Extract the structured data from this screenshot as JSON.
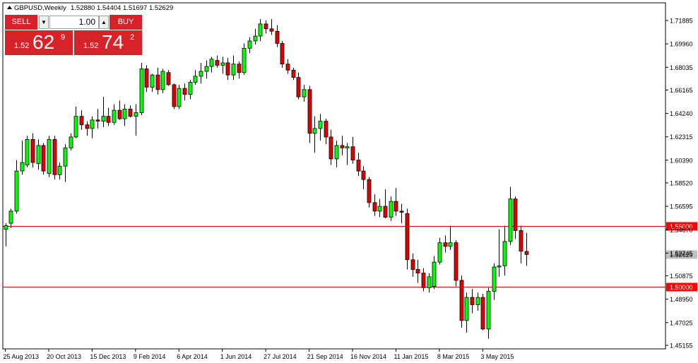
{
  "header": {
    "symbol": "GBPUSD,Weekly",
    "values": "1.52880 1.54404 1.51697 1.52629",
    "icon": "dropdown-triangle-icon"
  },
  "trade_panel": {
    "sell_label": "SELL",
    "buy_label": "BUY",
    "lot": "1.00",
    "sell_prefix": "1.52",
    "sell_big": "62",
    "sell_sup": "9",
    "buy_prefix": "1.52",
    "buy_big": "74",
    "buy_sup": "2",
    "spin_down_icon": "chevron-down-icon",
    "spin_up_icon": "chevron-up-icon"
  },
  "colors": {
    "bull": "#00ff00",
    "bear": "#e00000",
    "line": "#e00000",
    "axis": "#000000",
    "badge": "#ff0000",
    "current": "#c0c0c0"
  },
  "chart_data": {
    "type": "candlestick",
    "title": "GBPUSD,Weekly",
    "y_ticks": [
      "1.71885",
      "1.69960",
      "1.68035",
      "1.66165",
      "1.64240",
      "1.62315",
      "1.60390",
      "1.58520",
      "1.56595",
      "1.54670",
      "1.52745",
      "1.50875",
      "1.48950",
      "1.47025",
      "1.45155"
    ],
    "ylim": [
      1.4489,
      1.7299
    ],
    "x_ticks": [
      "25 Aug 2013",
      "20 Oct 2013",
      "15 Dec 2013",
      "9 Feb 2014",
      "6 Apr 2014",
      "1 Jun 2014",
      "27 Jul 2014",
      "21 Sep 2014",
      "16 Nov 2014",
      "11 Jan 2015",
      "8 Mar 2015",
      "3 May 2015"
    ],
    "levels": [
      {
        "value": 1.55,
        "label": "1.55000"
      },
      {
        "value": 1.5,
        "label": "1.50000"
      }
    ],
    "current": {
      "value": 1.52629,
      "label": "1.52629"
    },
    "candles": [
      {
        "o": 1.547,
        "h": 1.552,
        "l": 1.533,
        "c": 1.55
      },
      {
        "o": 1.552,
        "h": 1.564,
        "l": 1.548,
        "c": 1.562
      },
      {
        "o": 1.562,
        "h": 1.604,
        "l": 1.56,
        "c": 1.595
      },
      {
        "o": 1.595,
        "h": 1.62,
        "l": 1.592,
        "c": 1.602
      },
      {
        "o": 1.6,
        "h": 1.624,
        "l": 1.598,
        "c": 1.621
      },
      {
        "o": 1.621,
        "h": 1.626,
        "l": 1.598,
        "c": 1.602
      },
      {
        "o": 1.601,
        "h": 1.621,
        "l": 1.596,
        "c": 1.616
      },
      {
        "o": 1.616,
        "h": 1.618,
        "l": 1.592,
        "c": 1.595
      },
      {
        "o": 1.593,
        "h": 1.624,
        "l": 1.59,
        "c": 1.621
      },
      {
        "o": 1.621,
        "h": 1.624,
        "l": 1.588,
        "c": 1.592
      },
      {
        "o": 1.592,
        "h": 1.602,
        "l": 1.588,
        "c": 1.599
      },
      {
        "o": 1.599,
        "h": 1.617,
        "l": 1.586,
        "c": 1.614
      },
      {
        "o": 1.614,
        "h": 1.626,
        "l": 1.612,
        "c": 1.623
      },
      {
        "o": 1.623,
        "h": 1.648,
        "l": 1.622,
        "c": 1.64
      },
      {
        "o": 1.64,
        "h": 1.645,
        "l": 1.629,
        "c": 1.633
      },
      {
        "o": 1.633,
        "h": 1.636,
        "l": 1.624,
        "c": 1.63
      },
      {
        "o": 1.63,
        "h": 1.64,
        "l": 1.622,
        "c": 1.637
      },
      {
        "o": 1.637,
        "h": 1.646,
        "l": 1.63,
        "c": 1.636
      },
      {
        "o": 1.636,
        "h": 1.656,
        "l": 1.631,
        "c": 1.64
      },
      {
        "o": 1.64,
        "h": 1.647,
        "l": 1.632,
        "c": 1.635
      },
      {
        "o": 1.635,
        "h": 1.65,
        "l": 1.633,
        "c": 1.645
      },
      {
        "o": 1.645,
        "h": 1.653,
        "l": 1.637,
        "c": 1.638
      },
      {
        "o": 1.638,
        "h": 1.65,
        "l": 1.632,
        "c": 1.646
      },
      {
        "o": 1.646,
        "h": 1.649,
        "l": 1.639,
        "c": 1.64
      },
      {
        "o": 1.64,
        "h": 1.65,
        "l": 1.624,
        "c": 1.643
      },
      {
        "o": 1.643,
        "h": 1.684,
        "l": 1.641,
        "c": 1.679
      },
      {
        "o": 1.679,
        "h": 1.682,
        "l": 1.66,
        "c": 1.664
      },
      {
        "o": 1.664,
        "h": 1.675,
        "l": 1.66,
        "c": 1.674
      },
      {
        "o": 1.674,
        "h": 1.68,
        "l": 1.658,
        "c": 1.662
      },
      {
        "o": 1.662,
        "h": 1.679,
        "l": 1.659,
        "c": 1.677
      },
      {
        "o": 1.676,
        "h": 1.678,
        "l": 1.665,
        "c": 1.666
      },
      {
        "o": 1.666,
        "h": 1.667,
        "l": 1.646,
        "c": 1.648
      },
      {
        "o": 1.648,
        "h": 1.666,
        "l": 1.646,
        "c": 1.663
      },
      {
        "o": 1.663,
        "h": 1.667,
        "l": 1.653,
        "c": 1.658
      },
      {
        "o": 1.658,
        "h": 1.67,
        "l": 1.654,
        "c": 1.668
      },
      {
        "o": 1.668,
        "h": 1.678,
        "l": 1.666,
        "c": 1.673
      },
      {
        "o": 1.673,
        "h": 1.684,
        "l": 1.667,
        "c": 1.677
      },
      {
        "o": 1.677,
        "h": 1.686,
        "l": 1.671,
        "c": 1.681
      },
      {
        "o": 1.681,
        "h": 1.689,
        "l": 1.676,
        "c": 1.687
      },
      {
        "o": 1.686,
        "h": 1.69,
        "l": 1.68,
        "c": 1.682
      },
      {
        "o": 1.682,
        "h": 1.689,
        "l": 1.675,
        "c": 1.684
      },
      {
        "o": 1.684,
        "h": 1.688,
        "l": 1.67,
        "c": 1.674
      },
      {
        "o": 1.674,
        "h": 1.69,
        "l": 1.67,
        "c": 1.683
      },
      {
        "o": 1.683,
        "h": 1.685,
        "l": 1.671,
        "c": 1.676
      },
      {
        "o": 1.676,
        "h": 1.7,
        "l": 1.674,
        "c": 1.696
      },
      {
        "o": 1.696,
        "h": 1.705,
        "l": 1.692,
        "c": 1.702
      },
      {
        "o": 1.702,
        "h": 1.712,
        "l": 1.699,
        "c": 1.706
      },
      {
        "o": 1.706,
        "h": 1.72,
        "l": 1.702,
        "c": 1.716
      },
      {
        "o": 1.716,
        "h": 1.719,
        "l": 1.708,
        "c": 1.712
      },
      {
        "o": 1.712,
        "h": 1.72,
        "l": 1.707,
        "c": 1.71
      },
      {
        "o": 1.71,
        "h": 1.715,
        "l": 1.697,
        "c": 1.7
      },
      {
        "o": 1.7,
        "h": 1.702,
        "l": 1.68,
        "c": 1.683
      },
      {
        "o": 1.683,
        "h": 1.687,
        "l": 1.675,
        "c": 1.678
      },
      {
        "o": 1.678,
        "h": 1.68,
        "l": 1.67,
        "c": 1.672
      },
      {
        "o": 1.672,
        "h": 1.676,
        "l": 1.654,
        "c": 1.656
      },
      {
        "o": 1.656,
        "h": 1.666,
        "l": 1.652,
        "c": 1.662
      },
      {
        "o": 1.662,
        "h": 1.665,
        "l": 1.618,
        "c": 1.626
      },
      {
        "o": 1.626,
        "h": 1.64,
        "l": 1.61,
        "c": 1.63
      },
      {
        "o": 1.63,
        "h": 1.642,
        "l": 1.62,
        "c": 1.636
      },
      {
        "o": 1.636,
        "h": 1.638,
        "l": 1.617,
        "c": 1.623
      },
      {
        "o": 1.623,
        "h": 1.629,
        "l": 1.6,
        "c": 1.605
      },
      {
        "o": 1.605,
        "h": 1.62,
        "l": 1.598,
        "c": 1.616
      },
      {
        "o": 1.616,
        "h": 1.624,
        "l": 1.608,
        "c": 1.614
      },
      {
        "o": 1.614,
        "h": 1.618,
        "l": 1.6,
        "c": 1.615
      },
      {
        "o": 1.615,
        "h": 1.623,
        "l": 1.601,
        "c": 1.604
      },
      {
        "o": 1.604,
        "h": 1.61,
        "l": 1.591,
        "c": 1.595
      },
      {
        "o": 1.595,
        "h": 1.599,
        "l": 1.58,
        "c": 1.588
      },
      {
        "o": 1.588,
        "h": 1.59,
        "l": 1.565,
        "c": 1.569
      },
      {
        "o": 1.569,
        "h": 1.576,
        "l": 1.558,
        "c": 1.562
      },
      {
        "o": 1.562,
        "h": 1.572,
        "l": 1.557,
        "c": 1.566
      },
      {
        "o": 1.566,
        "h": 1.58,
        "l": 1.556,
        "c": 1.557
      },
      {
        "o": 1.557,
        "h": 1.574,
        "l": 1.554,
        "c": 1.57
      },
      {
        "o": 1.57,
        "h": 1.581,
        "l": 1.558,
        "c": 1.562
      },
      {
        "o": 1.562,
        "h": 1.568,
        "l": 1.552,
        "c": 1.561
      },
      {
        "o": 1.56,
        "h": 1.564,
        "l": 1.514,
        "c": 1.522
      },
      {
        "o": 1.522,
        "h": 1.527,
        "l": 1.508,
        "c": 1.514
      },
      {
        "o": 1.514,
        "h": 1.522,
        "l": 1.503,
        "c": 1.511
      },
      {
        "o": 1.511,
        "h": 1.515,
        "l": 1.496,
        "c": 1.499
      },
      {
        "o": 1.499,
        "h": 1.511,
        "l": 1.495,
        "c": 1.508
      },
      {
        "o": 1.5,
        "h": 1.525,
        "l": 1.498,
        "c": 1.52
      },
      {
        "o": 1.52,
        "h": 1.54,
        "l": 1.518,
        "c": 1.536
      },
      {
        "o": 1.536,
        "h": 1.542,
        "l": 1.528,
        "c": 1.533
      },
      {
        "o": 1.533,
        "h": 1.55,
        "l": 1.53,
        "c": 1.536
      },
      {
        "o": 1.536,
        "h": 1.538,
        "l": 1.5,
        "c": 1.505
      },
      {
        "o": 1.505,
        "h": 1.509,
        "l": 1.466,
        "c": 1.472
      },
      {
        "o": 1.472,
        "h": 1.495,
        "l": 1.462,
        "c": 1.491
      },
      {
        "o": 1.491,
        "h": 1.498,
        "l": 1.478,
        "c": 1.485
      },
      {
        "o": 1.485,
        "h": 1.495,
        "l": 1.48,
        "c": 1.491
      },
      {
        "o": 1.491,
        "h": 1.494,
        "l": 1.464,
        "c": 1.465
      },
      {
        "o": 1.465,
        "h": 1.499,
        "l": 1.457,
        "c": 1.496
      },
      {
        "o": 1.496,
        "h": 1.519,
        "l": 1.489,
        "c": 1.516
      },
      {
        "o": 1.516,
        "h": 1.547,
        "l": 1.508,
        "c": 1.517
      },
      {
        "o": 1.517,
        "h": 1.55,
        "l": 1.509,
        "c": 1.537
      },
      {
        "o": 1.537,
        "h": 1.582,
        "l": 1.534,
        "c": 1.572
      },
      {
        "o": 1.572,
        "h": 1.574,
        "l": 1.539,
        "c": 1.546
      },
      {
        "o": 1.546,
        "h": 1.55,
        "l": 1.519,
        "c": 1.529
      },
      {
        "o": 1.5288,
        "h": 1.544,
        "l": 1.517,
        "c": 1.5263
      }
    ]
  }
}
